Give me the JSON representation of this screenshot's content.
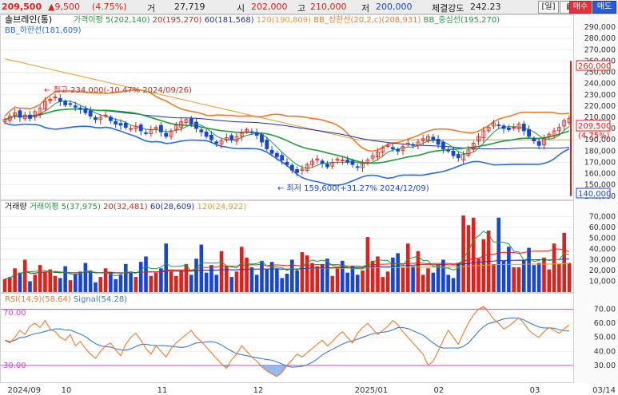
{
  "header": {
    "price": "209,500",
    "change": "▲9,500",
    "change_pct": "(4.75%)",
    "volume_label": "거",
    "volume": "27,719",
    "open_label": "시",
    "open": "202,000",
    "high_label": "고",
    "high": "210,000",
    "low_label": "저",
    "low": "200,000",
    "strength_label": "체결강도",
    "strength": "242.23",
    "period_button": "[일]",
    "buy_button": "매수",
    "sell_button": "매도"
  },
  "colors": {
    "up": "#e0201a",
    "down": "#1646d6",
    "ma5": "#1e9b3c",
    "ma20": "#e0201a",
    "ma60": "#2030b0",
    "ma120": "#e89a28",
    "bb_upper": "#f07a2a",
    "bb_mid": "#1e9b3c",
    "bb_lower": "#2a6ae0",
    "rsi": "#f07a2a",
    "signal": "#3a7ad8",
    "guide": "#e040e0"
  },
  "price_panel": {
    "stock_label": "솔브레인(통)",
    "legend": [
      {
        "text": "가격이평 5(202,140)",
        "color": "#1e9b3c"
      },
      {
        "text": "20(195,270)",
        "color": "#e0201a"
      },
      {
        "text": "60(181,568)",
        "color": "#2030b0"
      },
      {
        "text": "120(190,809)",
        "color": "#e89a28"
      },
      {
        "text": "BB_상한선(20,2,c)(208,931)",
        "color": "#f07a2a"
      },
      {
        "text": "BB_중심선(195,270)",
        "color": "#1e9b3c"
      },
      {
        "text": "BB_하한선(181,609)",
        "color": "#2a6ae0"
      }
    ],
    "annotation_high": "← 최고 234,000(-10.47% 2024/09/26)",
    "annotation_low": "← 최저 159,600(+31.27% 2024/12/09)",
    "yticks": [
      140000,
      150000,
      160000,
      170000,
      180000,
      190000,
      200000,
      210000,
      220000,
      230000,
      240000,
      250000,
      260000,
      270000,
      280000,
      290000
    ],
    "ylim": [
      137000,
      300000
    ],
    "current_label": "209,500",
    "current_change_label": "(4.75%)",
    "max_label": "260,000",
    "min_label": "140,000"
  },
  "volume_panel": {
    "legend": [
      {
        "text": "거래량",
        "color": "#222222"
      },
      {
        "text": "거래이평 5(37,975)",
        "color": "#1e9b3c"
      },
      {
        "text": "20(32,481)",
        "color": "#e0201a"
      },
      {
        "text": "60(28,609)",
        "color": "#2030b0"
      },
      {
        "text": "120(24,922)",
        "color": "#e89a28"
      }
    ],
    "yticks": [
      10000,
      20000,
      30000,
      40000,
      50000,
      60000,
      70000
    ],
    "ylim": [
      0,
      74000
    ]
  },
  "rsi_panel": {
    "legend": [
      {
        "text": "RSI(14,9)(58.64)",
        "color": "#f07a2a"
      },
      {
        "text": "Signal(54.28)",
        "color": "#3a7ad8"
      }
    ],
    "guide_high_label": "70.00",
    "guide_low_label": "30.00",
    "yticks": [
      30,
      40,
      50,
      60,
      70
    ],
    "ylim": [
      18,
      80
    ]
  },
  "x_axis": {
    "labels": [
      "2024/09",
      "10",
      "11",
      "12",
      "2025/01",
      "02",
      "03",
      "03/14"
    ]
  },
  "chart_data": {
    "type": "candlestick",
    "x_start": "2024/09",
    "x_end": "03/14",
    "close_series": [
      208,
      211,
      214,
      210,
      212,
      209,
      215,
      218,
      224,
      226,
      228,
      224,
      221,
      222,
      219,
      217,
      214,
      211,
      208,
      210,
      212,
      207,
      204,
      203,
      201,
      200,
      202,
      198,
      196,
      199,
      201,
      197,
      193,
      198,
      203,
      206,
      208,
      204,
      200,
      197,
      193,
      190,
      187,
      189,
      192,
      190,
      193,
      196,
      199,
      197,
      194,
      188,
      182,
      178,
      175,
      172,
      168,
      163,
      161,
      164,
      168,
      171,
      173,
      169,
      166,
      170,
      173,
      172,
      170,
      168,
      166,
      169,
      172,
      176,
      179,
      183,
      185,
      182,
      180,
      184,
      187,
      185,
      188,
      191,
      193,
      190,
      186,
      182,
      180,
      176,
      174,
      177,
      181,
      187,
      193,
      198,
      201,
      205,
      203,
      200,
      199,
      201,
      204,
      198,
      193,
      189,
      185,
      191,
      195,
      198,
      201,
      207,
      209
    ],
    "volume_series": [
      12,
      14,
      22,
      18,
      30,
      10,
      16,
      25,
      19,
      21,
      15,
      13,
      24,
      11,
      17,
      19,
      27,
      20,
      9,
      14,
      22,
      18,
      12,
      16,
      26,
      19,
      14,
      28,
      33,
      15,
      18,
      22,
      45,
      19,
      15,
      20,
      26,
      16,
      31,
      44,
      18,
      25,
      16,
      38,
      24,
      14,
      19,
      42,
      32,
      23,
      16,
      29,
      21,
      28,
      22,
      13,
      17,
      30,
      20,
      37,
      34,
      27,
      24,
      26,
      31,
      15,
      22,
      29,
      18,
      24,
      16,
      20,
      51,
      29,
      33,
      14,
      19,
      32,
      36,
      23,
      45,
      24,
      38,
      16,
      22,
      18,
      25,
      30,
      16,
      13,
      27,
      71,
      62,
      69,
      31,
      49,
      57,
      26,
      69,
      29,
      42,
      23,
      23,
      30,
      41,
      25,
      27,
      32,
      21,
      45,
      26,
      55,
      27
    ],
    "rsi_series": [
      48,
      46,
      50,
      55,
      52,
      58,
      60,
      57,
      62,
      56,
      54,
      50,
      48,
      52,
      44,
      47,
      42,
      38,
      35,
      40,
      44,
      46,
      41,
      37,
      45,
      50,
      53,
      48,
      42,
      38,
      44,
      40,
      36,
      42,
      46,
      49,
      52,
      55,
      50,
      47,
      43,
      39,
      35,
      31,
      28,
      34,
      38,
      44,
      40,
      36,
      33,
      29,
      26,
      24,
      22,
      25,
      30,
      34,
      38,
      36,
      39,
      42,
      45,
      48,
      44,
      47,
      51,
      54,
      50,
      46,
      53,
      57,
      60,
      56,
      52,
      55,
      58,
      62,
      59,
      54,
      50,
      46,
      42,
      38,
      30,
      33,
      40,
      48,
      55,
      50,
      45,
      53,
      60,
      66,
      70,
      72,
      68,
      63,
      60,
      56,
      58,
      61,
      64,
      60,
      55,
      52,
      50,
      54,
      57,
      55,
      53,
      56,
      59
    ]
  }
}
